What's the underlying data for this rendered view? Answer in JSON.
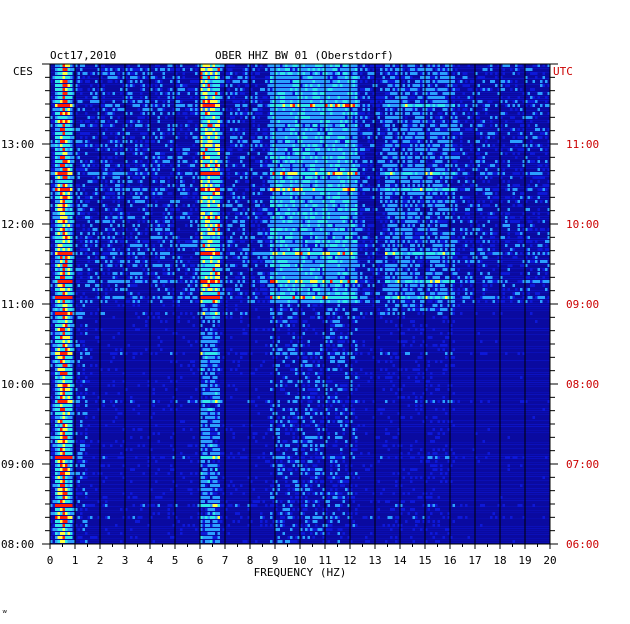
{
  "header": {
    "date": "Oct17,2010",
    "station": "OBER HHZ BW 01 (Oberstdorf)"
  },
  "footer": {
    "mark": "ʷ"
  },
  "colors": {
    "background": "#0a0aa0",
    "low": "#0d18d8",
    "mid": "#2aa0ff",
    "high": "#30e8e8",
    "peak": "#ffff40",
    "max": "#ff2000",
    "gridline": "#000000",
    "utc_label": "#cc0000"
  },
  "chart_data": {
    "type": "heatmap",
    "title": "OBER HHZ BW 01 (Oberstdorf)",
    "date": "Oct17,2010",
    "xlabel": "FREQUENCY (HZ)",
    "xlim": [
      0,
      20
    ],
    "x_ticks": [
      "0",
      "1",
      "2",
      "3",
      "4",
      "5",
      "6",
      "7",
      "8",
      "9",
      "10",
      "11",
      "12",
      "13",
      "14",
      "15",
      "16",
      "17",
      "18",
      "19",
      "20"
    ],
    "left_axis": {
      "label": "CES",
      "ticks": [
        "08:00",
        "09:00",
        "10:00",
        "11:00",
        "12:00",
        "13:00"
      ],
      "range_hours": [
        8.0,
        14.0
      ]
    },
    "right_axis": {
      "label": "UTC",
      "ticks": [
        "06:00",
        "07:00",
        "08:00",
        "09:00",
        "10:00",
        "11:00"
      ],
      "range_hours": [
        6.0,
        12.0
      ]
    },
    "bands": [
      {
        "freq_hz": [
          0.2,
          0.8
        ],
        "intensity": "very high",
        "time": "continuous"
      },
      {
        "freq_hz": [
          6.0,
          6.6
        ],
        "intensity": "high",
        "time": "strongest after 11:00 CES"
      },
      {
        "freq_hz": [
          9.0,
          12.0
        ],
        "intensity": "medium",
        "time": "mainly after 11:00 CES"
      },
      {
        "freq_hz": [
          13.5,
          16.0
        ],
        "intensity": "medium",
        "time": "around 13:30 and 11:00 CES"
      }
    ],
    "grid": true
  }
}
